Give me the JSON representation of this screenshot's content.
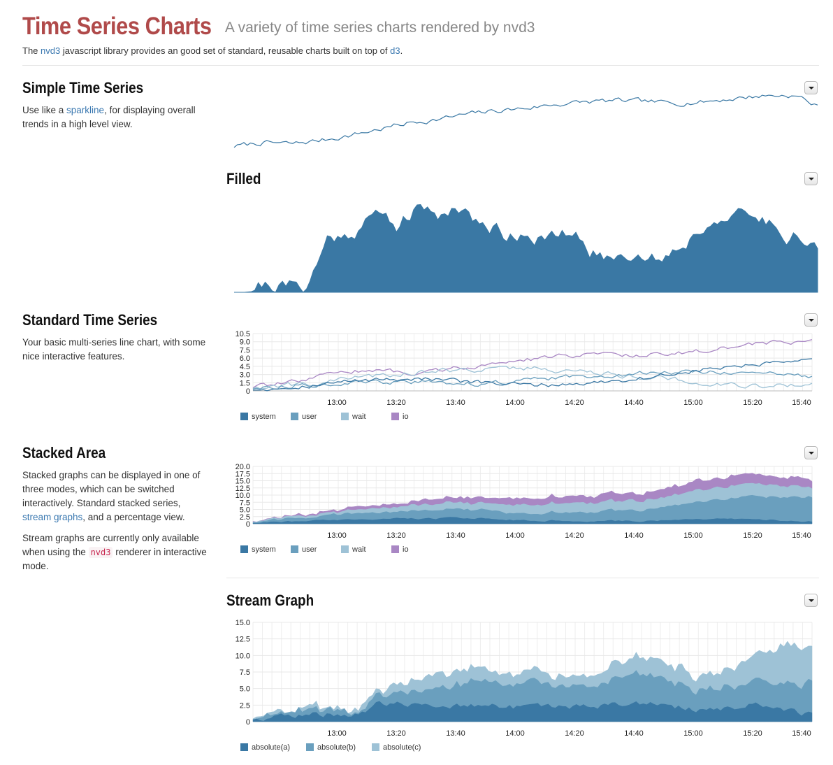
{
  "header": {
    "title": "Time Series Charts",
    "subtitle": "A variety of time series charts rendered by nvd3",
    "intro_pre": "The ",
    "intro_link1": "nvd3",
    "intro_mid": " javascript library provides an good set of standard, reusable charts built on top of ",
    "intro_link2": "d3",
    "intro_post": "."
  },
  "sections": {
    "simple": {
      "title": "Simple Time Series",
      "desc_pre": "Use like a ",
      "desc_link": "sparkline",
      "desc_post": ", for displaying overall trends in a high level view."
    },
    "filled": {
      "title": "Filled"
    },
    "standard": {
      "title": "Standard Time Series",
      "desc": "Your basic multi-series line chart, with some nice interactive features."
    },
    "stacked": {
      "title": "Stacked Area",
      "desc_pre": "Stacked graphs can be displayed in one of three modes, which can be switched interactively. Standard stacked series, ",
      "desc_link": "stream graphs",
      "desc_post": ", and a percentage view.",
      "desc2_pre": "Stream graphs are currently only available when using the ",
      "desc2_code": "nvd3",
      "desc2_post": " renderer in interactive mode."
    },
    "stream": {
      "title": "Stream Graph"
    }
  },
  "colors": {
    "c1": "#3a78a4",
    "c2": "#6a9fbe",
    "c3": "#9ec2d6",
    "c4": "#a987c4"
  },
  "chart_data": [
    {
      "id": "simple",
      "type": "line",
      "ylim": [
        0,
        10
      ],
      "keyframes": [
        [
          0,
          1.0
        ],
        [
          0.05,
          1.6
        ],
        [
          0.1,
          1.4
        ],
        [
          0.15,
          2.0
        ],
        [
          0.2,
          2.8
        ],
        [
          0.25,
          3.8
        ],
        [
          0.3,
          4.8
        ],
        [
          0.35,
          5.4
        ],
        [
          0.4,
          6.2
        ],
        [
          0.45,
          6.8
        ],
        [
          0.5,
          7.2
        ],
        [
          0.55,
          7.8
        ],
        [
          0.6,
          8.2
        ],
        [
          0.65,
          8.4
        ],
        [
          0.7,
          8.3
        ],
        [
          0.75,
          8.0
        ],
        [
          0.8,
          8.2
        ],
        [
          0.85,
          8.7
        ],
        [
          0.9,
          9.2
        ],
        [
          0.95,
          9.3
        ],
        [
          0.97,
          9.0
        ],
        [
          1.0,
          7.4
        ]
      ],
      "noise": 0.35
    },
    {
      "id": "filled",
      "type": "area",
      "ylim": [
        0,
        10
      ],
      "keyframes": [
        [
          0,
          0.2
        ],
        [
          0.05,
          0.8
        ],
        [
          0.08,
          0.7
        ],
        [
          0.12,
          0.5
        ],
        [
          0.14,
          2.5
        ],
        [
          0.16,
          5.5
        ],
        [
          0.2,
          6.2
        ],
        [
          0.23,
          7.5
        ],
        [
          0.25,
          8.2
        ],
        [
          0.28,
          7.0
        ],
        [
          0.31,
          8.3
        ],
        [
          0.33,
          8.6
        ],
        [
          0.36,
          8.0
        ],
        [
          0.38,
          9.0
        ],
        [
          0.4,
          8.6
        ],
        [
          0.42,
          6.6
        ],
        [
          0.45,
          6.8
        ],
        [
          0.47,
          5.8
        ],
        [
          0.5,
          6.4
        ],
        [
          0.53,
          5.3
        ],
        [
          0.55,
          5.6
        ],
        [
          0.58,
          6.0
        ],
        [
          0.62,
          3.8
        ],
        [
          0.65,
          3.6
        ],
        [
          0.68,
          4.2
        ],
        [
          0.72,
          3.5
        ],
        [
          0.75,
          4.2
        ],
        [
          0.77,
          5.0
        ],
        [
          0.8,
          6.5
        ],
        [
          0.83,
          8.0
        ],
        [
          0.85,
          7.2
        ],
        [
          0.88,
          8.0
        ],
        [
          0.9,
          7.5
        ],
        [
          0.93,
          7.0
        ],
        [
          0.95,
          6.0
        ],
        [
          0.98,
          5.5
        ],
        [
          1.0,
          5.0
        ]
      ],
      "noise": 0.7
    },
    {
      "id": "standard",
      "type": "line",
      "x_ticks": [
        "13:00",
        "13:20",
        "13:40",
        "14:00",
        "14:20",
        "14:40",
        "15:00",
        "15:20",
        "15:40"
      ],
      "y_ticks": [
        "0",
        "1.5",
        "3.0",
        "4.5",
        "6.0",
        "7.5",
        "9.0",
        "10.5"
      ],
      "ylim": [
        0,
        10.5
      ],
      "series": [
        {
          "name": "system",
          "color": "#3a78a4",
          "keyframes": [
            [
              0,
              0.3
            ],
            [
              0.1,
              1.0
            ],
            [
              0.2,
              2.0
            ],
            [
              0.3,
              2.3
            ],
            [
              0.4,
              1.5
            ],
            [
              0.5,
              1.0
            ],
            [
              0.6,
              1.4
            ],
            [
              0.7,
              2.4
            ],
            [
              0.8,
              3.8
            ],
            [
              0.9,
              4.8
            ],
            [
              1.0,
              5.4
            ]
          ],
          "noise": 0.35
        },
        {
          "name": "user",
          "color": "#6a9fbe",
          "keyframes": [
            [
              0,
              0.5
            ],
            [
              0.1,
              1.2
            ],
            [
              0.2,
              1.5
            ],
            [
              0.3,
              1.6
            ],
            [
              0.4,
              1.3
            ],
            [
              0.5,
              2.0
            ],
            [
              0.6,
              2.8
            ],
            [
              0.7,
              3.2
            ],
            [
              0.8,
              3.6
            ],
            [
              0.9,
              3.2
            ],
            [
              1.0,
              2.6
            ]
          ],
          "noise": 0.35
        },
        {
          "name": "wait",
          "color": "#9ec2d6",
          "keyframes": [
            [
              0,
              0.6
            ],
            [
              0.1,
              1.3
            ],
            [
              0.2,
              2.6
            ],
            [
              0.3,
              3.5
            ],
            [
              0.4,
              4.0
            ],
            [
              0.5,
              4.2
            ],
            [
              0.6,
              3.4
            ],
            [
              0.7,
              2.6
            ],
            [
              0.8,
              1.6
            ],
            [
              0.9,
              0.9
            ],
            [
              1.0,
              1.3
            ]
          ],
          "noise": 0.4
        },
        {
          "name": "io",
          "color": "#a987c4",
          "keyframes": [
            [
              0,
              0.7
            ],
            [
              0.1,
              2.0
            ],
            [
              0.15,
              3.5
            ],
            [
              0.2,
              3.8
            ],
            [
              0.3,
              3.3
            ],
            [
              0.4,
              4.6
            ],
            [
              0.5,
              5.8
            ],
            [
              0.6,
              6.8
            ],
            [
              0.7,
              6.6
            ],
            [
              0.8,
              7.3
            ],
            [
              0.9,
              8.6
            ],
            [
              1.0,
              9.2
            ]
          ],
          "noise": 0.35
        }
      ]
    },
    {
      "id": "stacked",
      "type": "area",
      "x_ticks": [
        "13:00",
        "13:20",
        "13:40",
        "14:00",
        "14:20",
        "14:40",
        "15:00",
        "15:20",
        "15:40"
      ],
      "y_ticks": [
        "0",
        "2.5",
        "5.0",
        "7.5",
        "10.0",
        "12.5",
        "15.0",
        "17.5",
        "20.0"
      ],
      "ylim": [
        0,
        20
      ],
      "series": [
        {
          "name": "system",
          "color": "#3a78a4",
          "keyframes": [
            [
              0,
              0.3
            ],
            [
              0.2,
              1.5
            ],
            [
              0.4,
              2.0
            ],
            [
              0.5,
              1.0
            ],
            [
              0.7,
              1.0
            ],
            [
              0.8,
              1.5
            ],
            [
              0.9,
              1.4
            ],
            [
              1.0,
              0.8
            ]
          ],
          "noise": 0.25
        },
        {
          "name": "user",
          "color": "#6a9fbe",
          "keyframes": [
            [
              0,
              0.3
            ],
            [
              0.2,
              2.2
            ],
            [
              0.4,
              3.0
            ],
            [
              0.5,
              2.5
            ],
            [
              0.7,
              4.0
            ],
            [
              0.8,
              6.0
            ],
            [
              0.9,
              8.0
            ],
            [
              1.0,
              8.5
            ]
          ],
          "noise": 0.35
        },
        {
          "name": "wait",
          "color": "#9ec2d6",
          "keyframes": [
            [
              0,
              0.3
            ],
            [
              0.2,
              1.2
            ],
            [
              0.4,
              2.5
            ],
            [
              0.5,
              3.0
            ],
            [
              0.7,
              3.5
            ],
            [
              0.8,
              4.0
            ],
            [
              0.9,
              4.5
            ],
            [
              1.0,
              3.5
            ]
          ],
          "noise": 0.3
        },
        {
          "name": "io",
          "color": "#a987c4",
          "keyframes": [
            [
              0,
              0.3
            ],
            [
              0.2,
              1.0
            ],
            [
              0.4,
              1.8
            ],
            [
              0.5,
              2.3
            ],
            [
              0.7,
              2.8
            ],
            [
              0.8,
              3.2
            ],
            [
              0.9,
              3.5
            ],
            [
              1.0,
              2.8
            ]
          ],
          "noise": 0.3
        }
      ]
    },
    {
      "id": "stream",
      "type": "area",
      "x_ticks": [
        "13:00",
        "13:20",
        "13:40",
        "14:00",
        "14:20",
        "14:40",
        "15:00",
        "15:20",
        "15:40"
      ],
      "y_ticks": [
        "0",
        "2.5",
        "5.0",
        "7.5",
        "10.0",
        "12.5",
        "15.0"
      ],
      "ylim": [
        0,
        15
      ],
      "series": [
        {
          "name": "absolute(a)",
          "color": "#3a78a4",
          "keyframes": [
            [
              0,
              0.3
            ],
            [
              0.1,
              1.2
            ],
            [
              0.18,
              1.0
            ],
            [
              0.22,
              2.5
            ],
            [
              0.3,
              2.8
            ],
            [
              0.4,
              2.4
            ],
            [
              0.5,
              2.0
            ],
            [
              0.6,
              2.2
            ],
            [
              0.7,
              2.8
            ],
            [
              0.8,
              1.8
            ],
            [
              0.9,
              2.5
            ],
            [
              1.0,
              1.0
            ]
          ],
          "noise": 0.4
        },
        {
          "name": "absolute(b)",
          "color": "#6a9fbe",
          "keyframes": [
            [
              0,
              0.2
            ],
            [
              0.1,
              0.8
            ],
            [
              0.18,
              0.5
            ],
            [
              0.22,
              1.2
            ],
            [
              0.3,
              2.2
            ],
            [
              0.4,
              3.6
            ],
            [
              0.5,
              3.3
            ],
            [
              0.6,
              3.0
            ],
            [
              0.7,
              4.5
            ],
            [
              0.8,
              3.0
            ],
            [
              0.9,
              3.5
            ],
            [
              1.0,
              4.5
            ]
          ],
          "noise": 0.4
        },
        {
          "name": "absolute(c)",
          "color": "#9ec2d6",
          "keyframes": [
            [
              0,
              0.1
            ],
            [
              0.1,
              0.6
            ],
            [
              0.18,
              0.4
            ],
            [
              0.22,
              1.0
            ],
            [
              0.3,
              2.0
            ],
            [
              0.4,
              1.8
            ],
            [
              0.5,
              1.8
            ],
            [
              0.6,
              1.4
            ],
            [
              0.7,
              2.6
            ],
            [
              0.8,
              2.5
            ],
            [
              0.9,
              4.0
            ],
            [
              0.95,
              6.0
            ],
            [
              1.0,
              5.5
            ]
          ],
          "noise": 0.45
        }
      ]
    }
  ]
}
